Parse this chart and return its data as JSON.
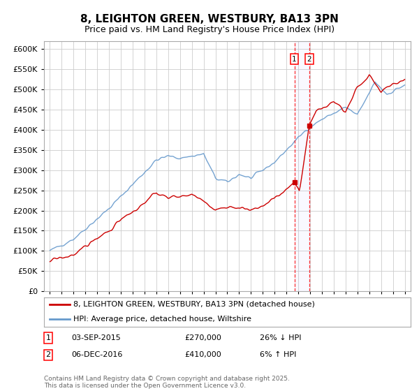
{
  "title": "8, LEIGHTON GREEN, WESTBURY, BA13 3PN",
  "subtitle": "Price paid vs. HM Land Registry's House Price Index (HPI)",
  "ylim": [
    0,
    620000
  ],
  "yticks": [
    0,
    50000,
    100000,
    150000,
    200000,
    250000,
    300000,
    350000,
    400000,
    450000,
    500000,
    550000,
    600000
  ],
  "xlim_left": 1994.5,
  "xlim_right": 2025.5,
  "line1_color": "#cc0000",
  "line2_color": "#6699cc",
  "marker1_date": 2015.67,
  "marker2_date": 2016.92,
  "marker1_price": 270000,
  "marker2_price": 410000,
  "legend_label1": "8, LEIGHTON GREEN, WESTBURY, BA13 3PN (detached house)",
  "legend_label2": "HPI: Average price, detached house, Wiltshire",
  "sale1_date": "03-SEP-2015",
  "sale1_price": "£270,000",
  "sale1_hpi": "26% ↓ HPI",
  "sale2_date": "06-DEC-2016",
  "sale2_price": "£410,000",
  "sale2_hpi": "6% ↑ HPI",
  "footnote": "Contains HM Land Registry data © Crown copyright and database right 2025.\nThis data is licensed under the Open Government Licence v3.0.",
  "bg_color": "#ffffff",
  "grid_color": "#cccccc",
  "title_fontsize": 11,
  "subtitle_fontsize": 9,
  "tick_fontsize": 8,
  "legend_fontsize": 8,
  "sale_fontsize": 8,
  "footnote_fontsize": 6.5
}
